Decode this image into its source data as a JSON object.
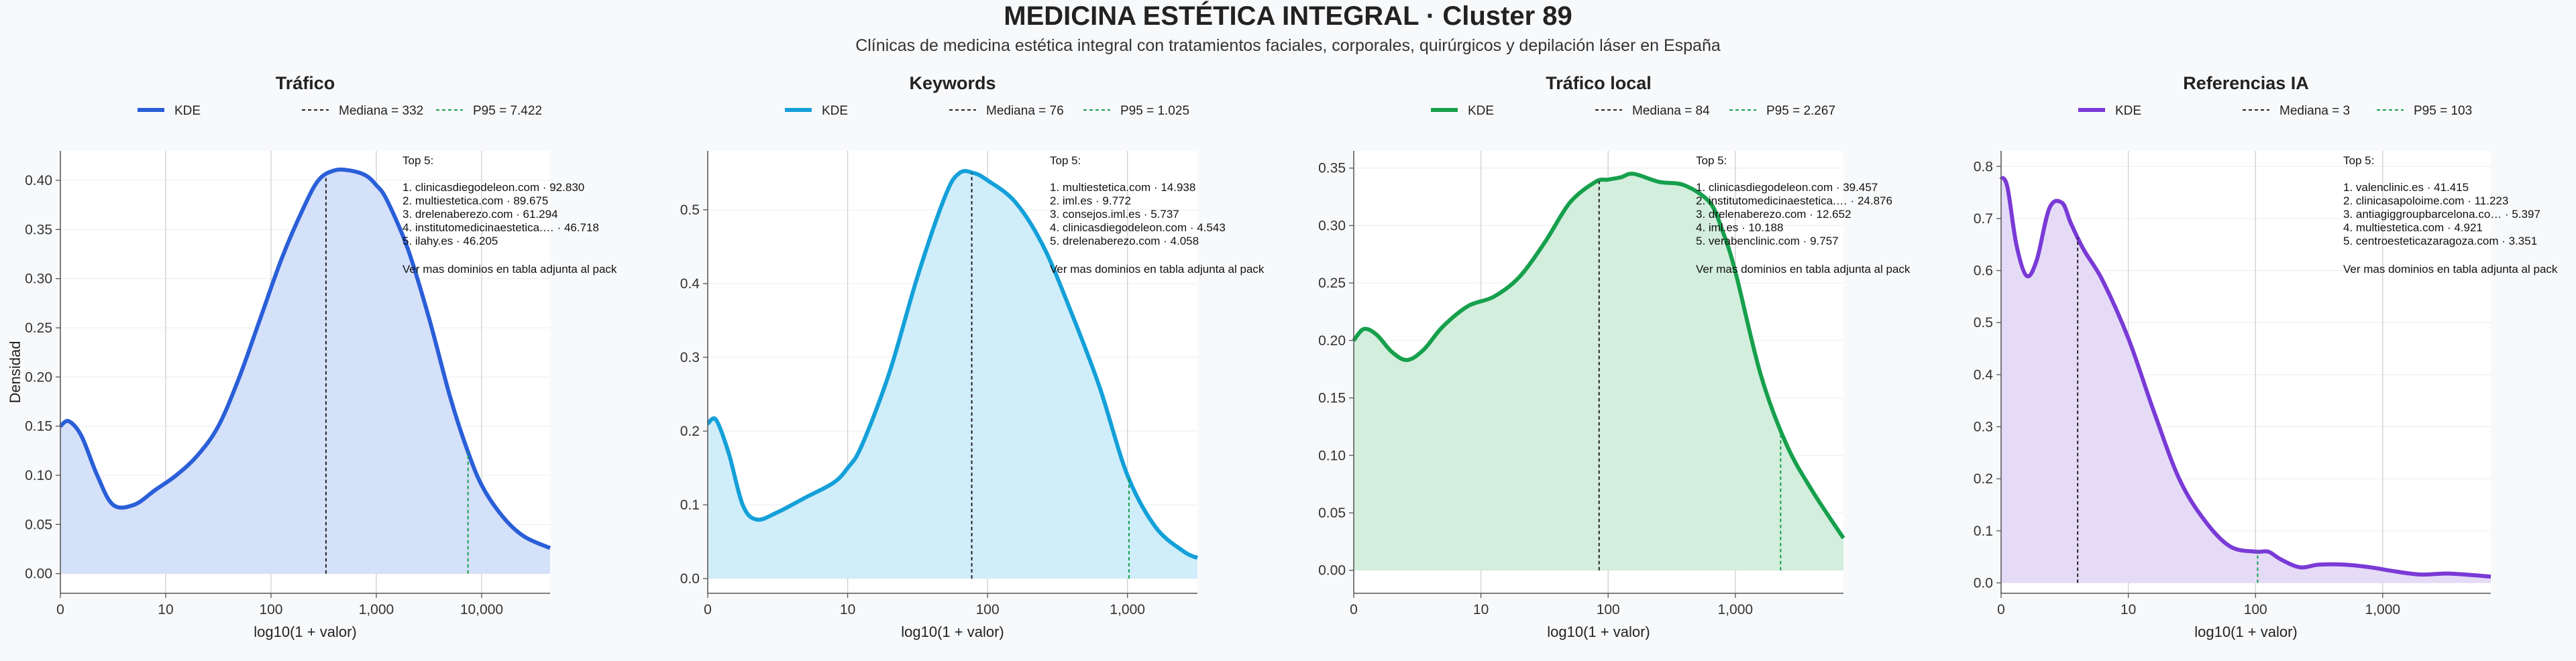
{
  "suptitle": "MEDICINA ESTÉTICA INTEGRAL · Cluster 89",
  "subtitle": "Clínicas de medicina estética integral con tratamientos faciales, corporales, quirúrgicos y depilación láser en España",
  "chart_data": [
    {
      "type": "area",
      "title": "Tráfico",
      "xlabel": "log10(1 + valor)",
      "ylabel": "Densidad",
      "color": "#2a5fd8",
      "fill": "#d5e0f9",
      "xlim": [
        0,
        4.65
      ],
      "ylim": [
        -0.02,
        0.43
      ],
      "xticks": [
        {
          "v": 0,
          "label": "0"
        },
        {
          "v": 1,
          "label": "10"
        },
        {
          "v": 2,
          "label": "100"
        },
        {
          "v": 3,
          "label": "1,000"
        },
        {
          "v": 4,
          "label": "10,000"
        }
      ],
      "yticks": [
        {
          "v": 0,
          "label": "0.00"
        },
        {
          "v": 0.05,
          "label": "0.05"
        },
        {
          "v": 0.1,
          "label": "0.10"
        },
        {
          "v": 0.15,
          "label": "0.15"
        },
        {
          "v": 0.2,
          "label": "0.20"
        },
        {
          "v": 0.25,
          "label": "0.25"
        },
        {
          "v": 0.3,
          "label": "0.30"
        },
        {
          "v": 0.35,
          "label": "0.35"
        },
        {
          "v": 0.4,
          "label": "0.40"
        }
      ],
      "series": [
        {
          "name": "KDE",
          "x": [
            0,
            0.08,
            0.2,
            0.35,
            0.5,
            0.7,
            0.9,
            1.1,
            1.3,
            1.5,
            1.7,
            1.9,
            2.1,
            2.3,
            2.45,
            2.6,
            2.75,
            2.9,
            3.0,
            3.1,
            3.3,
            3.5,
            3.7,
            3.85,
            4.0,
            4.2,
            4.4,
            4.65
          ],
          "y": [
            0.15,
            0.155,
            0.14,
            0.1,
            0.07,
            0.07,
            0.085,
            0.1,
            0.12,
            0.15,
            0.2,
            0.26,
            0.32,
            0.37,
            0.4,
            0.41,
            0.41,
            0.405,
            0.395,
            0.38,
            0.33,
            0.26,
            0.18,
            0.13,
            0.09,
            0.058,
            0.038,
            0.026
          ]
        },
        {
          "name": "Mediana = 332",
          "x": 2.522
        },
        {
          "name": "P95 = 7.422",
          "x": 3.871
        }
      ],
      "top_heading": "Top 5:",
      "top5": [
        "1. clinicasdiegodeleon.com · 92.830",
        "2. multiestetica.com · 89.675",
        "3. drelenaberezo.com · 61.294",
        "4. institutomedicinaestetica.… · 46.718",
        "5. ilahy.es · 46.205"
      ],
      "footnote": "Ver mas dominios en tabla adjunta al pack"
    },
    {
      "type": "area",
      "title": "Keywords",
      "xlabel": "log10(1 + valor)",
      "ylabel": "",
      "color": "#14a0d8",
      "fill": "#d0edfa",
      "xlim": [
        0,
        3.5
      ],
      "ylim": [
        -0.02,
        0.58
      ],
      "xticks": [
        {
          "v": 0,
          "label": "0"
        },
        {
          "v": 1,
          "label": "10"
        },
        {
          "v": 2,
          "label": "100"
        },
        {
          "v": 3,
          "label": "1,000"
        }
      ],
      "yticks": [
        {
          "v": 0,
          "label": "0.0"
        },
        {
          "v": 0.1,
          "label": "0.1"
        },
        {
          "v": 0.2,
          "label": "0.2"
        },
        {
          "v": 0.3,
          "label": "0.3"
        },
        {
          "v": 0.4,
          "label": "0.4"
        },
        {
          "v": 0.5,
          "label": "0.5"
        }
      ],
      "series": [
        {
          "name": "KDE",
          "x": [
            0,
            0.06,
            0.15,
            0.25,
            0.35,
            0.5,
            0.7,
            0.9,
            1.0,
            1.1,
            1.3,
            1.5,
            1.7,
            1.8,
            1.9,
            2.0,
            2.2,
            2.4,
            2.6,
            2.8,
            3.0,
            3.2,
            3.4,
            3.5
          ],
          "y": [
            0.21,
            0.215,
            0.17,
            0.1,
            0.08,
            0.09,
            0.11,
            0.13,
            0.15,
            0.18,
            0.28,
            0.41,
            0.52,
            0.55,
            0.55,
            0.54,
            0.51,
            0.45,
            0.36,
            0.26,
            0.14,
            0.07,
            0.037,
            0.028
          ]
        },
        {
          "name": "Mediana = 76",
          "x": 1.887
        },
        {
          "name": "P95 = 1.025",
          "x": 3.011
        }
      ],
      "top_heading": "Top 5:",
      "top5": [
        "1. multiestetica.com · 14.938",
        "2. iml.es · 9.772",
        "3. consejos.iml.es · 5.737",
        "4. clinicasdiegodeleon.com · 4.543",
        "5. drelenaberezo.com · 4.058"
      ],
      "footnote": "Ver mas dominios en tabla adjunta al pack"
    },
    {
      "type": "area",
      "title": "Tráfico local",
      "xlabel": "log10(1 + valor)",
      "ylabel": "",
      "color": "#16a04c",
      "fill": "#d3eedd",
      "xlim": [
        0,
        3.85
      ],
      "ylim": [
        -0.02,
        0.365
      ],
      "xticks": [
        {
          "v": 0,
          "label": "0"
        },
        {
          "v": 1,
          "label": "10"
        },
        {
          "v": 2,
          "label": "100"
        },
        {
          "v": 3,
          "label": "1,000"
        }
      ],
      "yticks": [
        {
          "v": 0,
          "label": "0.00"
        },
        {
          "v": 0.05,
          "label": "0.05"
        },
        {
          "v": 0.1,
          "label": "0.10"
        },
        {
          "v": 0.15,
          "label": "0.15"
        },
        {
          "v": 0.2,
          "label": "0.20"
        },
        {
          "v": 0.25,
          "label": "0.25"
        },
        {
          "v": 0.3,
          "label": "0.30"
        },
        {
          "v": 0.35,
          "label": "0.35"
        }
      ],
      "series": [
        {
          "name": "KDE",
          "x": [
            0,
            0.08,
            0.18,
            0.3,
            0.42,
            0.55,
            0.7,
            0.9,
            1.1,
            1.3,
            1.5,
            1.7,
            1.9,
            2.0,
            2.1,
            2.2,
            2.4,
            2.6,
            2.8,
            2.9,
            3.0,
            3.2,
            3.4,
            3.6,
            3.85
          ],
          "y": [
            0.2,
            0.21,
            0.205,
            0.19,
            0.183,
            0.192,
            0.212,
            0.23,
            0.238,
            0.255,
            0.285,
            0.32,
            0.338,
            0.34,
            0.342,
            0.345,
            0.338,
            0.335,
            0.32,
            0.295,
            0.26,
            0.17,
            0.11,
            0.07,
            0.028
          ]
        },
        {
          "name": "Mediana = 84",
          "x": 1.929
        },
        {
          "name": "P95 = 2.267",
          "x": 3.356
        }
      ],
      "top_heading": "Top 5:",
      "top5": [
        "1. clinicasdiegodeleon.com · 39.457",
        "2. institutomedicinaestetica.… · 24.876",
        "3. drelenaberezo.com · 12.652",
        "4. iml.es · 10.188",
        "5. verabenclinic.com · 9.757"
      ],
      "footnote": "Ver mas dominios en tabla adjunta al pack"
    },
    {
      "type": "area",
      "title": "Referencias IA",
      "xlabel": "log10(1 + valor)",
      "ylabel": "",
      "color": "#7a3ad6",
      "fill": "#e5dbf7",
      "xlim": [
        0,
        3.85
      ],
      "ylim": [
        -0.02,
        0.83
      ],
      "xticks": [
        {
          "v": 0,
          "label": "0"
        },
        {
          "v": 1,
          "label": "10"
        },
        {
          "v": 2,
          "label": "100"
        },
        {
          "v": 3,
          "label": "1,000"
        }
      ],
      "yticks": [
        {
          "v": 0,
          "label": "0.0"
        },
        {
          "v": 0.1,
          "label": "0.1"
        },
        {
          "v": 0.2,
          "label": "0.2"
        },
        {
          "v": 0.3,
          "label": "0.3"
        },
        {
          "v": 0.4,
          "label": "0.4"
        },
        {
          "v": 0.5,
          "label": "0.5"
        },
        {
          "v": 0.6,
          "label": "0.6"
        },
        {
          "v": 0.7,
          "label": "0.7"
        },
        {
          "v": 0.8,
          "label": "0.8"
        }
      ],
      "series": [
        {
          "name": "KDE",
          "x": [
            0,
            0.05,
            0.12,
            0.2,
            0.28,
            0.38,
            0.48,
            0.55,
            0.65,
            0.8,
            1.0,
            1.2,
            1.4,
            1.6,
            1.8,
            2.0,
            2.1,
            2.2,
            2.35,
            2.5,
            2.7,
            2.9,
            3.1,
            3.3,
            3.5,
            3.7,
            3.85
          ],
          "y": [
            0.78,
            0.76,
            0.65,
            0.59,
            0.62,
            0.72,
            0.73,
            0.69,
            0.64,
            0.58,
            0.47,
            0.33,
            0.2,
            0.12,
            0.07,
            0.06,
            0.06,
            0.045,
            0.03,
            0.035,
            0.035,
            0.03,
            0.022,
            0.016,
            0.018,
            0.015,
            0.012
          ]
        },
        {
          "name": "Mediana = 3",
          "x": 0.602
        },
        {
          "name": "P95 = 103",
          "x": 2.017
        }
      ],
      "top_heading": "Top 5:",
      "top5": [
        "1. valenclinic.es · 41.415",
        "2. clinicasapoloime.com · 11.223",
        "3. antiagiggroupbarcelona.co… · 5.397",
        "4. multiestetica.com · 4.921",
        "5. centroesteticazaragoza.com · 3.351"
      ],
      "footnote": "Ver mas dominios en tabla adjunta al pack"
    }
  ]
}
